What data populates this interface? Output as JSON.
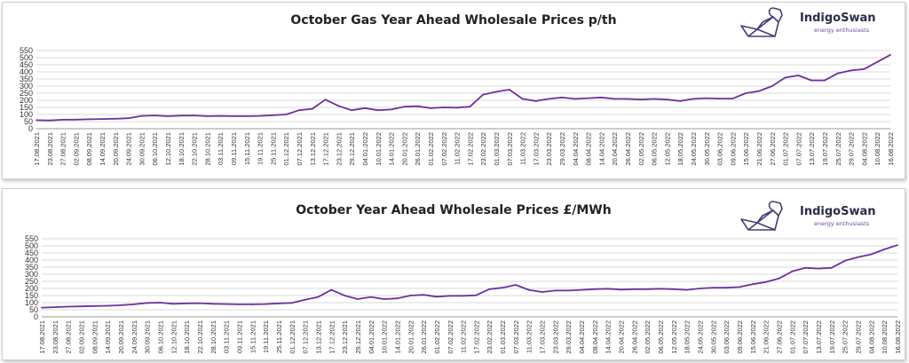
{
  "logo": {
    "name": "IndigoSwan",
    "tagline": "energy enthusiasts",
    "line_color": "#6a4aa0"
  },
  "colors": {
    "series": "#7030a0",
    "grid": "#d9d9d9",
    "axis": "#999999"
  },
  "date_labels": [
    "17.08.2021",
    "23.08.2021",
    "27.08.2021",
    "02.09.2021",
    "08.09.2021",
    "14.09.2021",
    "20.09.2021",
    "24.09.2021",
    "30.09.2021",
    "06.10.2021",
    "12.10.2021",
    "18.10.2021",
    "22.10.2021",
    "28.10.2021",
    "03.11.2021",
    "09.11.2021",
    "15.11.2021",
    "19.11.2021",
    "25.11.2021",
    "01.12.2021",
    "07.12.2021",
    "13.12.2021",
    "17.12.2021",
    "23.12.2021",
    "29.12.2021",
    "04.01.2022",
    "10.01.2022",
    "14.01.2022",
    "20.01.2022",
    "26.01.2022",
    "01.02.2022",
    "07.02.2022",
    "11.02.2022",
    "17.02.2022",
    "23.02.2022",
    "01.03.2022",
    "07.03.2022",
    "11.03.2022",
    "17.03.2022",
    "23.03.2022",
    "29.03.2022",
    "04.04.2022",
    "08.04.2022",
    "14.04.2022",
    "20.04.2022",
    "26.04.2022",
    "02.05.2022",
    "06.05.2022",
    "12.05.2022",
    "18.05.2022",
    "24.05.2022",
    "30.05.2022",
    "03.06.2022",
    "09.06.2022",
    "15.06.2022",
    "21.06.2022",
    "27.06.2022",
    "01.07.2022",
    "07.07.2022",
    "13.07.2022",
    "19.07.2022",
    "25.07.2022",
    "29.07.2022",
    "04.08.2022",
    "10.08.2022",
    "16.08.2022"
  ],
  "chart_data": [
    {
      "type": "line",
      "title": "October Gas Year Ahead Wholesale Prices p/th",
      "xlabel": "",
      "ylabel": "",
      "ylim": [
        0,
        550
      ],
      "yticks": [
        0,
        50,
        100,
        150,
        200,
        250,
        300,
        350,
        400,
        450,
        500,
        550
      ],
      "grid": true,
      "series": [
        {
          "values": [
            60,
            58,
            63,
            64,
            66,
            68,
            70,
            74,
            90,
            93,
            88,
            92,
            93,
            88,
            90,
            88,
            88,
            90,
            95,
            100,
            130,
            140,
            205,
            160,
            130,
            145,
            130,
            135,
            155,
            158,
            145,
            150,
            148,
            155,
            240,
            260,
            275,
            210,
            195,
            210,
            220,
            210,
            215,
            220,
            210,
            210,
            205,
            210,
            205,
            195,
            210,
            215,
            212,
            212,
            250,
            265,
            300,
            360,
            375,
            340,
            340,
            390,
            410,
            420,
            470,
            520
          ]
        }
      ]
    },
    {
      "type": "line",
      "title": "October Year Ahead Wholesale Prices £/MWh",
      "xlabel": "",
      "ylabel": "",
      "ylim": [
        0,
        550
      ],
      "yticks": [
        0,
        50,
        100,
        150,
        200,
        250,
        300,
        350,
        400,
        450,
        500,
        550
      ],
      "grid": true,
      "series": [
        {
          "values": [
            65,
            68,
            72,
            74,
            76,
            78,
            82,
            88,
            98,
            100,
            92,
            95,
            96,
            92,
            90,
            88,
            88,
            90,
            95,
            98,
            120,
            140,
            190,
            150,
            125,
            140,
            125,
            130,
            150,
            155,
            142,
            148,
            148,
            152,
            195,
            205,
            225,
            190,
            175,
            185,
            185,
            190,
            195,
            198,
            192,
            195,
            195,
            198,
            195,
            190,
            200,
            205,
            205,
            210,
            230,
            245,
            270,
            320,
            345,
            340,
            345,
            395,
            420,
            440,
            475,
            505
          ]
        }
      ]
    }
  ]
}
